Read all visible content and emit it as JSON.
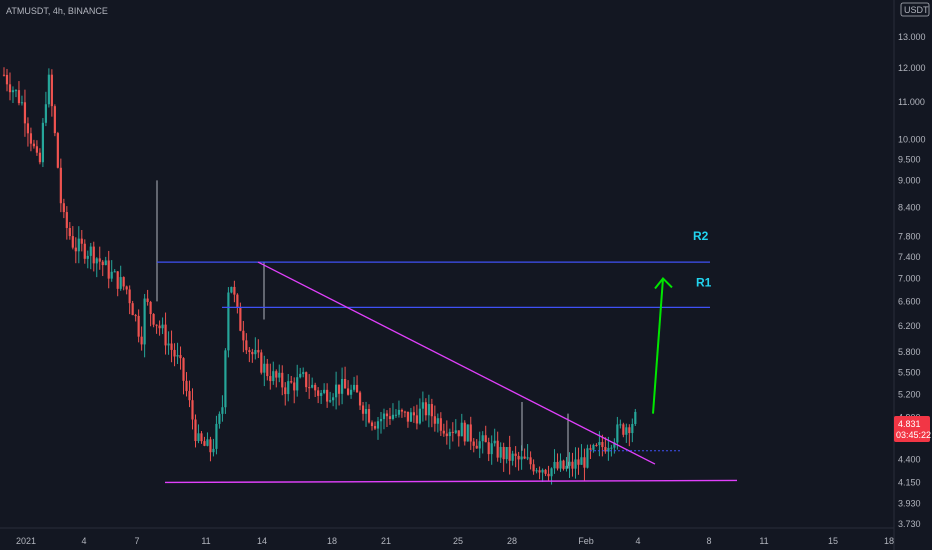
{
  "header": {
    "symbol": "ATMUSDT, 4h, BINANCE"
  },
  "currency_badge": "USDT",
  "price_tag": {
    "price": "4.831",
    "countdown": "03:45:22",
    "color": "#f23645"
  },
  "colors": {
    "up": "#26a69a",
    "down": "#ef5350",
    "background": "#131722",
    "level": "#3f51f5",
    "trend": "#e040fb",
    "arrow": "#00e600",
    "label": "#22d3ee"
  },
  "chart_data": {
    "type": "candlestick",
    "title": "ATMUSDT, 4h, BINANCE",
    "y_scale": "log",
    "ylim": [
      3.65,
      14.4
    ],
    "y_ticks": [
      "13.000",
      "12.000",
      "11.000",
      "10.000",
      "9.500",
      "9.000",
      "8.400",
      "7.800",
      "7.400",
      "7.000",
      "6.600",
      "6.200",
      "5.800",
      "5.500",
      "5.200",
      "4.900",
      "4.400",
      "4.150",
      "3.930",
      "3.730"
    ],
    "x_ticks": [
      "2021",
      "4",
      "7",
      "11",
      "14",
      "18",
      "21",
      "25",
      "28",
      "Feb",
      "4",
      "8",
      "11",
      "15",
      "18"
    ],
    "grid": false,
    "candles_description": "4h candles from early Jan 2021: decline from ~12 to ~4.4, spike to ~7.2 around Jan 13-14, then descending triangle consolidation between ~4.2 and the falling trendline, breakout near 4.8 in early Feb",
    "price_path": [
      [
        0,
        11.8
      ],
      [
        1,
        11.0
      ],
      [
        2,
        9.2
      ],
      [
        2.5,
        11.8
      ],
      [
        3,
        9.6
      ],
      [
        3.3,
        8.2
      ],
      [
        4,
        7.6
      ],
      [
        5,
        7.5
      ],
      [
        6,
        7.1
      ],
      [
        7,
        6.8
      ],
      [
        7.8,
        6.0
      ],
      [
        8,
        6.6
      ],
      [
        9,
        6.1
      ],
      [
        10,
        5.6
      ],
      [
        11,
        4.6
      ],
      [
        11.8,
        4.5
      ],
      [
        12.4,
        5.0
      ],
      [
        12.8,
        7.1
      ],
      [
        13.3,
        6.3
      ],
      [
        14,
        5.8
      ],
      [
        15,
        5.5
      ],
      [
        16,
        5.3
      ],
      [
        17,
        5.4
      ],
      [
        18,
        5.2
      ],
      [
        19,
        5.3
      ],
      [
        20,
        5.2
      ],
      [
        21,
        4.85
      ],
      [
        22,
        4.95
      ],
      [
        23,
        4.9
      ],
      [
        24,
        5.0
      ],
      [
        25,
        4.8
      ],
      [
        26,
        4.75
      ],
      [
        27,
        4.6
      ],
      [
        28,
        4.5
      ],
      [
        29,
        4.4
      ],
      [
        30,
        4.35
      ],
      [
        31,
        4.3
      ],
      [
        32,
        4.3
      ],
      [
        33,
        4.4
      ],
      [
        34,
        4.55
      ],
      [
        35,
        4.75
      ],
      [
        36,
        4.9
      ]
    ],
    "levels": [
      {
        "name": "R2",
        "price": 7.3
      },
      {
        "name": "R1",
        "price": 6.5
      },
      {
        "name": "support",
        "price": 4.16
      }
    ],
    "trendline": {
      "from": {
        "x": 13.5,
        "price": 7.3
      },
      "to": {
        "x": 35.0,
        "price": 4.35
      }
    },
    "projection": {
      "from_price": 4.95,
      "to_price": 7.0
    }
  }
}
